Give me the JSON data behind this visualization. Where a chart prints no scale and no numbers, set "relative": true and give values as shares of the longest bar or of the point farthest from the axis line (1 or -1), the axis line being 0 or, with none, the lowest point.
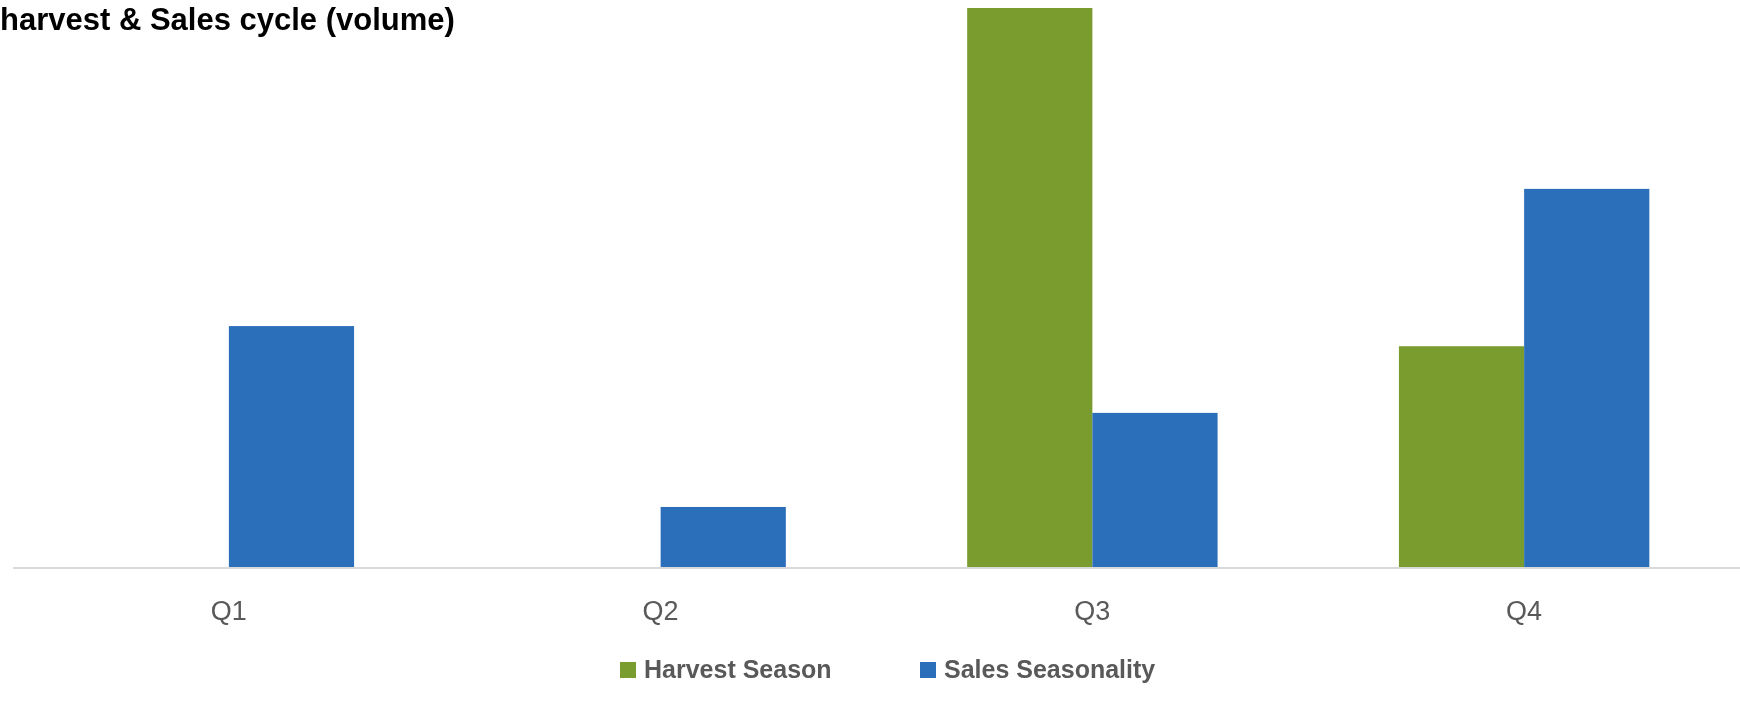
{
  "chart_data": {
    "type": "bar",
    "title": "harvest & Sales cycle (volume)",
    "relative": true,
    "categories": [
      "Q1",
      "Q2",
      "Q3",
      "Q4"
    ],
    "series": [
      {
        "name": "Harvest Season",
        "color": "#7a9c2e",
        "values": [
          0,
          0,
          1,
          0.396
        ]
      },
      {
        "name": "Sales Seasonality",
        "color": "#2b6fbb",
        "values": [
          0.432,
          0.109,
          0.277,
          0.677
        ]
      }
    ],
    "legend": "bottom"
  }
}
